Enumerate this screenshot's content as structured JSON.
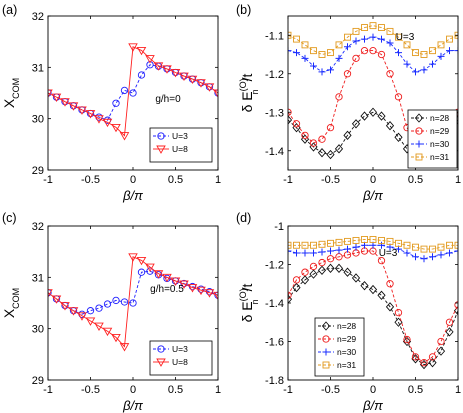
{
  "colors": {
    "U=3": "#1f1fff",
    "U=8": "#ff2020",
    "n=28": "#111111",
    "n=29": "#ee1c1c",
    "n=30": "#1a2cff",
    "n=31": "#e29a1e"
  },
  "chart_data": [
    {
      "id": "a",
      "type": "line",
      "panel_label": "(a)",
      "annotation": "g/h=0",
      "xlabel_greek": "β",
      "xlabel_rest": "/π",
      "ylabel_main": "X",
      "ylabel_sub": "COM",
      "xlim": [
        -1,
        1
      ],
      "ylim": [
        29,
        32
      ],
      "xticks": [
        -1,
        -0.5,
        0,
        0.5,
        1
      ],
      "xtick_labels": [
        "-1",
        "-0.5",
        "0",
        "0.5",
        "1"
      ],
      "yticks": [
        29,
        30,
        31,
        32
      ],
      "ytick_labels": [
        "29",
        "30",
        "31",
        "32"
      ],
      "legend_position": "bottom-right",
      "series": [
        {
          "name": "U=3",
          "marker": "circle",
          "color_key": "U=3",
          "dashed": true,
          "x": [
            -1,
            -0.9,
            -0.8,
            -0.7,
            -0.6,
            -0.5,
            -0.4,
            -0.3,
            -0.2,
            -0.1,
            0,
            0.1,
            0.2,
            0.3,
            0.4,
            0.5,
            0.6,
            0.7,
            0.8,
            0.9,
            1
          ],
          "y": [
            30.5,
            30.42,
            30.33,
            30.25,
            30.17,
            30.1,
            30.03,
            29.97,
            30.3,
            30.55,
            30.5,
            30.85,
            31.05,
            31.02,
            30.97,
            30.9,
            30.83,
            30.77,
            30.7,
            30.62,
            30.5
          ]
        },
        {
          "name": "U=8",
          "marker": "triangle-down",
          "color_key": "U=8",
          "dashed": false,
          "x": [
            -1,
            -0.9,
            -0.8,
            -0.7,
            -0.6,
            -0.5,
            -0.4,
            -0.3,
            -0.2,
            -0.1,
            -0.1,
            0,
            0.1,
            0.2,
            0.3,
            0.4,
            0.5,
            0.6,
            0.7,
            0.8,
            0.9,
            1
          ],
          "y": [
            30.5,
            30.42,
            30.33,
            30.25,
            30.17,
            30.1,
            30.0,
            29.93,
            29.83,
            29.67,
            29.67,
            31.4,
            31.33,
            31.17,
            31.03,
            30.97,
            30.9,
            30.83,
            30.77,
            30.7,
            30.62,
            30.5
          ],
          "marker_skip": [
            10
          ]
        }
      ]
    },
    {
      "id": "b",
      "type": "line",
      "panel_label": "(b)",
      "annotation": "U=3",
      "xlabel_greek": "β",
      "xlabel_rest": "/π",
      "ylabel_main": "δ E",
      "ylabel_sub": "n",
      "ylabel_sup": "(O)",
      "ylabel_tail": "/t",
      "xlim": [
        -1,
        1
      ],
      "ylim": [
        -1.45,
        -1.05
      ],
      "xticks": [
        -1,
        -0.5,
        0,
        0.5,
        1
      ],
      "xtick_labels": [
        "-1",
        "-0.5",
        "0",
        "0.5",
        "1"
      ],
      "yticks": [
        -1.4,
        -1.3,
        -1.2,
        -1.1
      ],
      "ytick_labels": [
        "-1.4",
        "-1.3",
        "-1.2",
        "-1.1"
      ],
      "legend_position": "bottom-right",
      "series": [
        {
          "name": "n=28",
          "marker": "diamond",
          "color_key": "n=28",
          "dashed": true,
          "x": [
            -1,
            -0.9,
            -0.8,
            -0.7,
            -0.6,
            -0.5,
            -0.4,
            -0.3,
            -0.2,
            -0.1,
            0,
            0.1,
            0.2,
            0.3,
            0.4,
            0.5,
            0.6,
            0.7,
            0.8,
            0.9,
            1
          ],
          "y": [
            -1.32,
            -1.34,
            -1.37,
            -1.39,
            -1.405,
            -1.41,
            -1.395,
            -1.36,
            -1.33,
            -1.31,
            -1.3,
            -1.31,
            -1.335,
            -1.365,
            -1.395,
            -1.41,
            -1.415,
            -1.4,
            -1.375,
            -1.345,
            -1.32
          ]
        },
        {
          "name": "n=29",
          "marker": "circle",
          "color_key": "n=29",
          "dashed": true,
          "x": [
            -1,
            -0.9,
            -0.8,
            -0.7,
            -0.6,
            -0.5,
            -0.4,
            -0.3,
            -0.2,
            -0.1,
            0,
            0.1,
            0.2,
            0.3,
            0.4,
            0.5,
            0.6,
            0.7,
            0.8,
            0.9,
            1
          ],
          "y": [
            -1.3,
            -1.33,
            -1.36,
            -1.38,
            -1.37,
            -1.34,
            -1.26,
            -1.2,
            -1.16,
            -1.14,
            -1.14,
            -1.15,
            -1.2,
            -1.26,
            -1.34,
            -1.375,
            -1.385,
            -1.375,
            -1.35,
            -1.32,
            -1.3
          ]
        },
        {
          "name": "n=30",
          "marker": "plus",
          "color_key": "n=30",
          "dashed": true,
          "x": [
            -1,
            -0.9,
            -0.8,
            -0.7,
            -0.6,
            -0.5,
            -0.4,
            -0.3,
            -0.2,
            -0.1,
            0,
            0.1,
            0.2,
            0.3,
            0.4,
            0.5,
            0.6,
            0.7,
            0.8,
            0.9,
            1
          ],
          "y": [
            -1.14,
            -1.145,
            -1.16,
            -1.18,
            -1.195,
            -1.19,
            -1.16,
            -1.13,
            -1.115,
            -1.11,
            -1.105,
            -1.11,
            -1.12,
            -1.145,
            -1.175,
            -1.195,
            -1.19,
            -1.175,
            -1.155,
            -1.14,
            -1.14
          ]
        },
        {
          "name": "n=31",
          "marker": "square",
          "color_key": "n=31",
          "dashed": true,
          "x": [
            -1,
            -0.9,
            -0.8,
            -0.7,
            -0.6,
            -0.5,
            -0.4,
            -0.3,
            -0.2,
            -0.1,
            0,
            0.1,
            0.2,
            0.3,
            0.4,
            0.5,
            0.6,
            0.7,
            0.8,
            0.9,
            1
          ],
          "y": [
            -1.1,
            -1.11,
            -1.125,
            -1.14,
            -1.15,
            -1.145,
            -1.125,
            -1.105,
            -1.09,
            -1.08,
            -1.075,
            -1.08,
            -1.09,
            -1.105,
            -1.125,
            -1.145,
            -1.15,
            -1.14,
            -1.125,
            -1.11,
            -1.1
          ]
        }
      ]
    },
    {
      "id": "c",
      "type": "line",
      "panel_label": "(c)",
      "annotation": "g/h=0.5",
      "xlabel_greek": "β",
      "xlabel_rest": "/π",
      "ylabel_main": "X",
      "ylabel_sub": "COM",
      "xlim": [
        -1,
        1
      ],
      "ylim": [
        29,
        32
      ],
      "xticks": [
        -1,
        -0.5,
        0,
        0.5,
        1
      ],
      "xtick_labels": [
        "-1",
        "-0.5",
        "0",
        "0.5",
        "1"
      ],
      "yticks": [
        29,
        30,
        31,
        32
      ],
      "ytick_labels": [
        "29",
        "30",
        "31",
        "32"
      ],
      "legend_position": "bottom-right",
      "series": [
        {
          "name": "U=3",
          "marker": "circle",
          "color_key": "U=3",
          "dashed": true,
          "x": [
            -1,
            -0.9,
            -0.8,
            -0.7,
            -0.6,
            -0.5,
            -0.4,
            -0.3,
            -0.2,
            -0.1,
            0,
            0.1,
            0.2,
            0.3,
            0.4,
            0.5,
            0.6,
            0.7,
            0.8,
            0.9,
            1
          ],
          "y": [
            30.7,
            30.58,
            30.45,
            30.35,
            30.28,
            30.35,
            30.4,
            30.48,
            30.55,
            30.52,
            30.5,
            31.1,
            31.12,
            31.05,
            30.98,
            30.93,
            30.88,
            30.82,
            30.77,
            30.72,
            30.65
          ]
        },
        {
          "name": "U=8",
          "marker": "triangle-down",
          "color_key": "U=8",
          "dashed": false,
          "x": [
            -1,
            -0.9,
            -0.8,
            -0.7,
            -0.6,
            -0.5,
            -0.4,
            -0.3,
            -0.2,
            -0.1,
            -0.1,
            0,
            0.1,
            0.2,
            0.3,
            0.4,
            0.5,
            0.6,
            0.7,
            0.8,
            0.9,
            1
          ],
          "y": [
            30.7,
            30.58,
            30.45,
            30.35,
            30.25,
            30.15,
            30.05,
            29.95,
            29.83,
            29.65,
            29.65,
            31.4,
            31.33,
            31.2,
            31.07,
            31.0,
            30.93,
            30.87,
            30.8,
            30.75,
            30.7,
            30.65
          ],
          "marker_skip": [
            10
          ]
        }
      ]
    },
    {
      "id": "d",
      "type": "line",
      "panel_label": "(d)",
      "annotation": "U=3",
      "xlabel_greek": "β",
      "xlabel_rest": "/π",
      "ylabel_main": "δ E",
      "ylabel_sub": "n",
      "ylabel_sup": "(O)",
      "ylabel_tail": "/t",
      "xlim": [
        -1,
        1
      ],
      "ylim": [
        -1.8,
        -1.0
      ],
      "xticks": [
        -1,
        -0.5,
        0,
        0.5,
        1
      ],
      "xtick_labels": [
        "-1",
        "-0.5",
        "0",
        "0.5",
        "1"
      ],
      "yticks": [
        -1.8,
        -1.6,
        -1.4,
        -1.2,
        -1.0
      ],
      "ytick_labels": [
        "-1.8",
        "-1.6",
        "-1.4",
        "-1.2",
        "-1"
      ],
      "legend_position": "bottom-left",
      "series": [
        {
          "name": "n=28",
          "marker": "diamond",
          "color_key": "n=28",
          "dashed": true,
          "x": [
            -1,
            -0.9,
            -0.8,
            -0.7,
            -0.6,
            -0.5,
            -0.4,
            -0.3,
            -0.2,
            -0.1,
            0,
            0.1,
            0.2,
            0.3,
            0.4,
            0.5,
            0.6,
            0.7,
            0.8,
            0.9,
            1
          ],
          "y": [
            -1.38,
            -1.32,
            -1.28,
            -1.25,
            -1.23,
            -1.22,
            -1.22,
            -1.24,
            -1.27,
            -1.31,
            -1.33,
            -1.36,
            -1.42,
            -1.5,
            -1.6,
            -1.69,
            -1.72,
            -1.71,
            -1.65,
            -1.55,
            -1.44
          ]
        },
        {
          "name": "n=29",
          "marker": "circle",
          "color_key": "n=29",
          "dashed": true,
          "x": [
            -1,
            -0.9,
            -0.8,
            -0.7,
            -0.6,
            -0.5,
            -0.4,
            -0.3,
            -0.2,
            -0.1,
            0,
            0.1,
            0.2,
            0.3,
            0.4,
            0.5,
            0.6,
            0.7,
            0.8,
            0.9,
            1
          ],
          "y": [
            -1.36,
            -1.28,
            -1.24,
            -1.21,
            -1.19,
            -1.17,
            -1.16,
            -1.15,
            -1.14,
            -1.13,
            -1.13,
            -1.18,
            -1.3,
            -1.45,
            -1.59,
            -1.68,
            -1.71,
            -1.68,
            -1.6,
            -1.5,
            -1.41
          ]
        },
        {
          "name": "n=30",
          "marker": "plus",
          "color_key": "n=30",
          "dashed": true,
          "x": [
            -1,
            -0.9,
            -0.8,
            -0.7,
            -0.6,
            -0.5,
            -0.4,
            -0.3,
            -0.2,
            -0.1,
            0,
            0.1,
            0.2,
            0.3,
            0.4,
            0.5,
            0.6,
            0.7,
            0.8,
            0.9,
            1
          ],
          "y": [
            -1.13,
            -1.14,
            -1.14,
            -1.14,
            -1.135,
            -1.13,
            -1.125,
            -1.12,
            -1.11,
            -1.1,
            -1.1,
            -1.1,
            -1.11,
            -1.12,
            -1.14,
            -1.16,
            -1.17,
            -1.16,
            -1.15,
            -1.14,
            -1.13
          ]
        },
        {
          "name": "n=31",
          "marker": "square",
          "color_key": "n=31",
          "dashed": true,
          "x": [
            -1,
            -0.9,
            -0.8,
            -0.7,
            -0.6,
            -0.5,
            -0.4,
            -0.3,
            -0.2,
            -0.1,
            0,
            0.1,
            0.2,
            0.3,
            0.4,
            0.5,
            0.6,
            0.7,
            0.8,
            0.9,
            1
          ],
          "y": [
            -1.1,
            -1.1,
            -1.1,
            -1.1,
            -1.095,
            -1.09,
            -1.085,
            -1.08,
            -1.075,
            -1.07,
            -1.07,
            -1.075,
            -1.08,
            -1.09,
            -1.1,
            -1.11,
            -1.12,
            -1.12,
            -1.11,
            -1.1,
            -1.1
          ]
        }
      ]
    }
  ]
}
